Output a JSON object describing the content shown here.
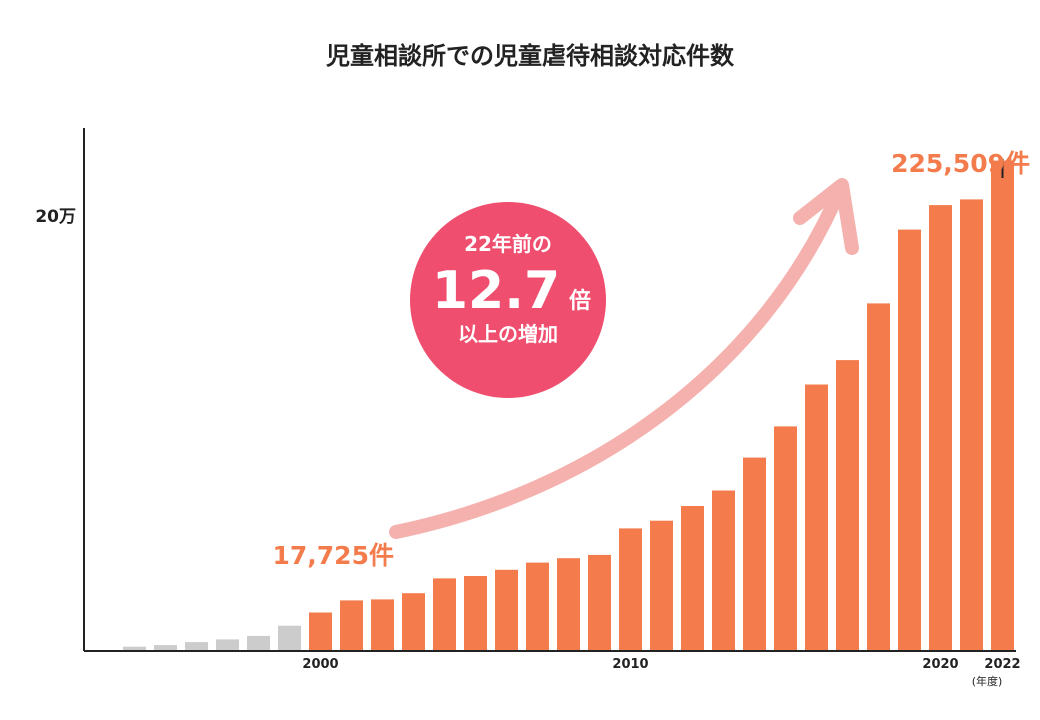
{
  "chart_data": {
    "type": "bar",
    "title": "児童相談所での児童虐待相談対応件数",
    "unit_label": "(年度)",
    "y_tick_labels": [
      {
        "value": 200000,
        "label": "20万"
      }
    ],
    "x_tick_labels": [
      {
        "year": 2000,
        "label": "2000"
      },
      {
        "year": 2010,
        "label": "2010"
      },
      {
        "year": 2020,
        "label": "2020"
      },
      {
        "year": 2022,
        "label": "2022"
      }
    ],
    "ylim": [
      0,
      235000
    ],
    "categories": [
      1994,
      1995,
      1996,
      1997,
      1998,
      1999,
      2000,
      2001,
      2002,
      2003,
      2004,
      2005,
      2006,
      2007,
      2008,
      2009,
      2010,
      2011,
      2012,
      2013,
      2014,
      2015,
      2016,
      2017,
      2018,
      2019,
      2020,
      2021,
      2022
    ],
    "values": [
      1961,
      2722,
      4102,
      5352,
      6932,
      11631,
      17725,
      23274,
      23738,
      26569,
      33408,
      34472,
      37323,
      40639,
      42664,
      44211,
      56384,
      59919,
      66701,
      73802,
      88931,
      103286,
      122575,
      133778,
      159838,
      193780,
      205044,
      207660,
      225509
    ],
    "bar_colors": [
      "#cccccc",
      "#cccccc",
      "#cccccc",
      "#cccccc",
      "#cccccc",
      "#cccccc",
      "#f47b4b",
      "#f47b4b",
      "#f47b4b",
      "#f47b4b",
      "#f47b4b",
      "#f47b4b",
      "#f47b4b",
      "#f47b4b",
      "#f47b4b",
      "#f47b4b",
      "#f47b4b",
      "#f47b4b",
      "#f47b4b",
      "#f47b4b",
      "#f47b4b",
      "#f47b4b",
      "#f47b4b",
      "#f47b4b",
      "#f47b4b",
      "#f47b4b",
      "#f47b4b",
      "#f47b4b",
      "#f47b4b"
    ],
    "annotations": {
      "start": {
        "year": 2000,
        "text": "17,725件"
      },
      "end": {
        "year": 2022,
        "text": "225,509件"
      }
    },
    "callout": {
      "line1": "22年前の",
      "big": "12.7",
      "suffix": "倍",
      "line3": "以上の増加"
    },
    "grid": false,
    "legend": "none"
  },
  "colors": {
    "accent": "#f47b4b",
    "past": "#cccccc",
    "callout": "#ef4e6e",
    "arrow": "#f5b1ae",
    "axis": "#222222"
  }
}
